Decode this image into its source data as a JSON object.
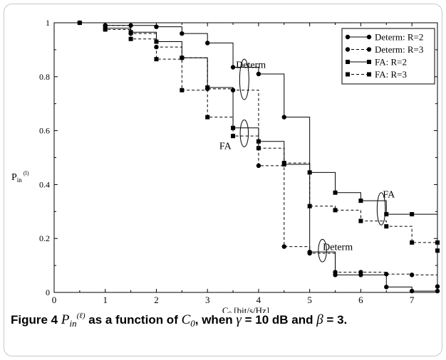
{
  "chart_data": {
    "type": "line",
    "step": true,
    "title": "",
    "xlabel": "C",
    "xlabel_sub": "0",
    "xlabel_unit": " [bit/s/Hz]",
    "ylabel": "P",
    "ylabel_sub": "in",
    "ylabel_sup": "(l)",
    "xlim": [
      0,
      7.5
    ],
    "ylim": [
      0,
      1
    ],
    "xticks": [
      "0",
      "1",
      "2",
      "3",
      "4",
      "5",
      "6",
      "7"
    ],
    "yticks": [
      "0",
      "0.2",
      "0.4",
      "0.6",
      "0.8",
      "1"
    ],
    "legend_position": "top-right",
    "series": [
      {
        "name": "Determ: R=2",
        "marker": "circle",
        "dashed": false,
        "x": [
          0.5,
          1,
          1.5,
          2,
          2.5,
          3,
          3.5,
          4,
          4.5,
          5,
          5.5,
          6,
          6.5,
          7,
          7.5
        ],
        "y": [
          1.0,
          0.99,
          0.99,
          0.985,
          0.96,
          0.925,
          0.835,
          0.81,
          0.65,
          0.15,
          0.065,
          0.065,
          0.02,
          0.005,
          0.005
        ]
      },
      {
        "name": "Determ: R=3",
        "marker": "circle",
        "dashed": true,
        "x": [
          0.5,
          1,
          1.5,
          2,
          2.5,
          3,
          3.5,
          4,
          4.5,
          5,
          5.5,
          6,
          6.5,
          7,
          7.5
        ],
        "y": [
          1.0,
          0.99,
          0.96,
          0.91,
          0.87,
          0.755,
          0.75,
          0.47,
          0.17,
          0.145,
          0.075,
          0.075,
          0.068,
          0.065,
          0.022
        ]
      },
      {
        "name": "FA: R=2",
        "marker": "square",
        "dashed": false,
        "x": [
          0.5,
          1,
          1.5,
          2,
          2.5,
          3,
          3.5,
          4,
          4.5,
          5,
          5.5,
          6,
          6.5,
          7,
          7.5
        ],
        "y": [
          1.0,
          0.98,
          0.965,
          0.93,
          0.87,
          0.76,
          0.61,
          0.56,
          0.475,
          0.445,
          0.37,
          0.34,
          0.29,
          0.29,
          0.185
        ]
      },
      {
        "name": "FA: R=3",
        "marker": "square",
        "dashed": true,
        "x": [
          0.5,
          1,
          1.5,
          2,
          2.5,
          3,
          3.5,
          4,
          4.5,
          5,
          5.5,
          6,
          6.5,
          7,
          7.5
        ],
        "y": [
          1.0,
          0.975,
          0.94,
          0.865,
          0.75,
          0.65,
          0.58,
          0.535,
          0.48,
          0.32,
          0.305,
          0.265,
          0.245,
          0.185,
          0.155
        ]
      }
    ],
    "annotations": [
      {
        "text": "Determ",
        "x": 3.85,
        "y": 0.845
      },
      {
        "text": "FA",
        "x": 3.35,
        "y": 0.545
      },
      {
        "text": "FA",
        "x": 6.55,
        "y": 0.365
      },
      {
        "text": "Determ",
        "x": 5.55,
        "y": 0.17
      }
    ],
    "ellipses": [
      {
        "cx": 3.72,
        "cy": 0.79,
        "rx": 0.09,
        "ry": 0.075
      },
      {
        "cx": 3.72,
        "cy": 0.59,
        "rx": 0.08,
        "ry": 0.05
      },
      {
        "cx": 6.4,
        "cy": 0.31,
        "rx": 0.08,
        "ry": 0.06
      },
      {
        "cx": 5.25,
        "cy": 0.155,
        "rx": 0.08,
        "ry": 0.042
      }
    ]
  },
  "caption": {
    "figure_label": "Figure 4",
    "text_before": " as a function of ",
    "text_middle": ", when ",
    "gamma_part": " = 10 dB and ",
    "beta_part": " = 3."
  }
}
